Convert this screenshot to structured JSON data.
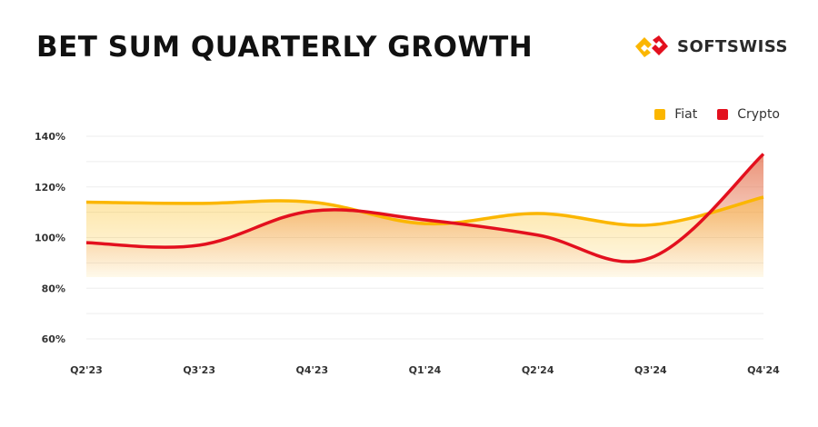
{
  "header": {
    "title": "BET SUM QUARTERLY GROWTH",
    "brand": "SOFTSWISS"
  },
  "colors": {
    "fiat": "#FBB600",
    "crypto": "#E3101E"
  },
  "chart_data": {
    "type": "line",
    "title": "BET SUM QUARTERLY GROWTH",
    "categories": [
      "Q2'23",
      "Q3'23",
      "Q4'23",
      "Q1'24",
      "Q2'24",
      "Q3'24",
      "Q4'24"
    ],
    "series": [
      {
        "name": "Fiat",
        "values": [
          114,
          113.5,
          114,
          105.5,
          109.5,
          105,
          116
        ]
      },
      {
        "name": "Crypto",
        "values": [
          98,
          97,
          110.5,
          107,
          101,
          92,
          133
        ]
      }
    ],
    "yticks": [
      "60%",
      "80%",
      "100%",
      "120%",
      "140%"
    ],
    "ylim": [
      60,
      140
    ],
    "xlabel": "",
    "ylabel": "",
    "grid": true,
    "legend": "top-right"
  }
}
